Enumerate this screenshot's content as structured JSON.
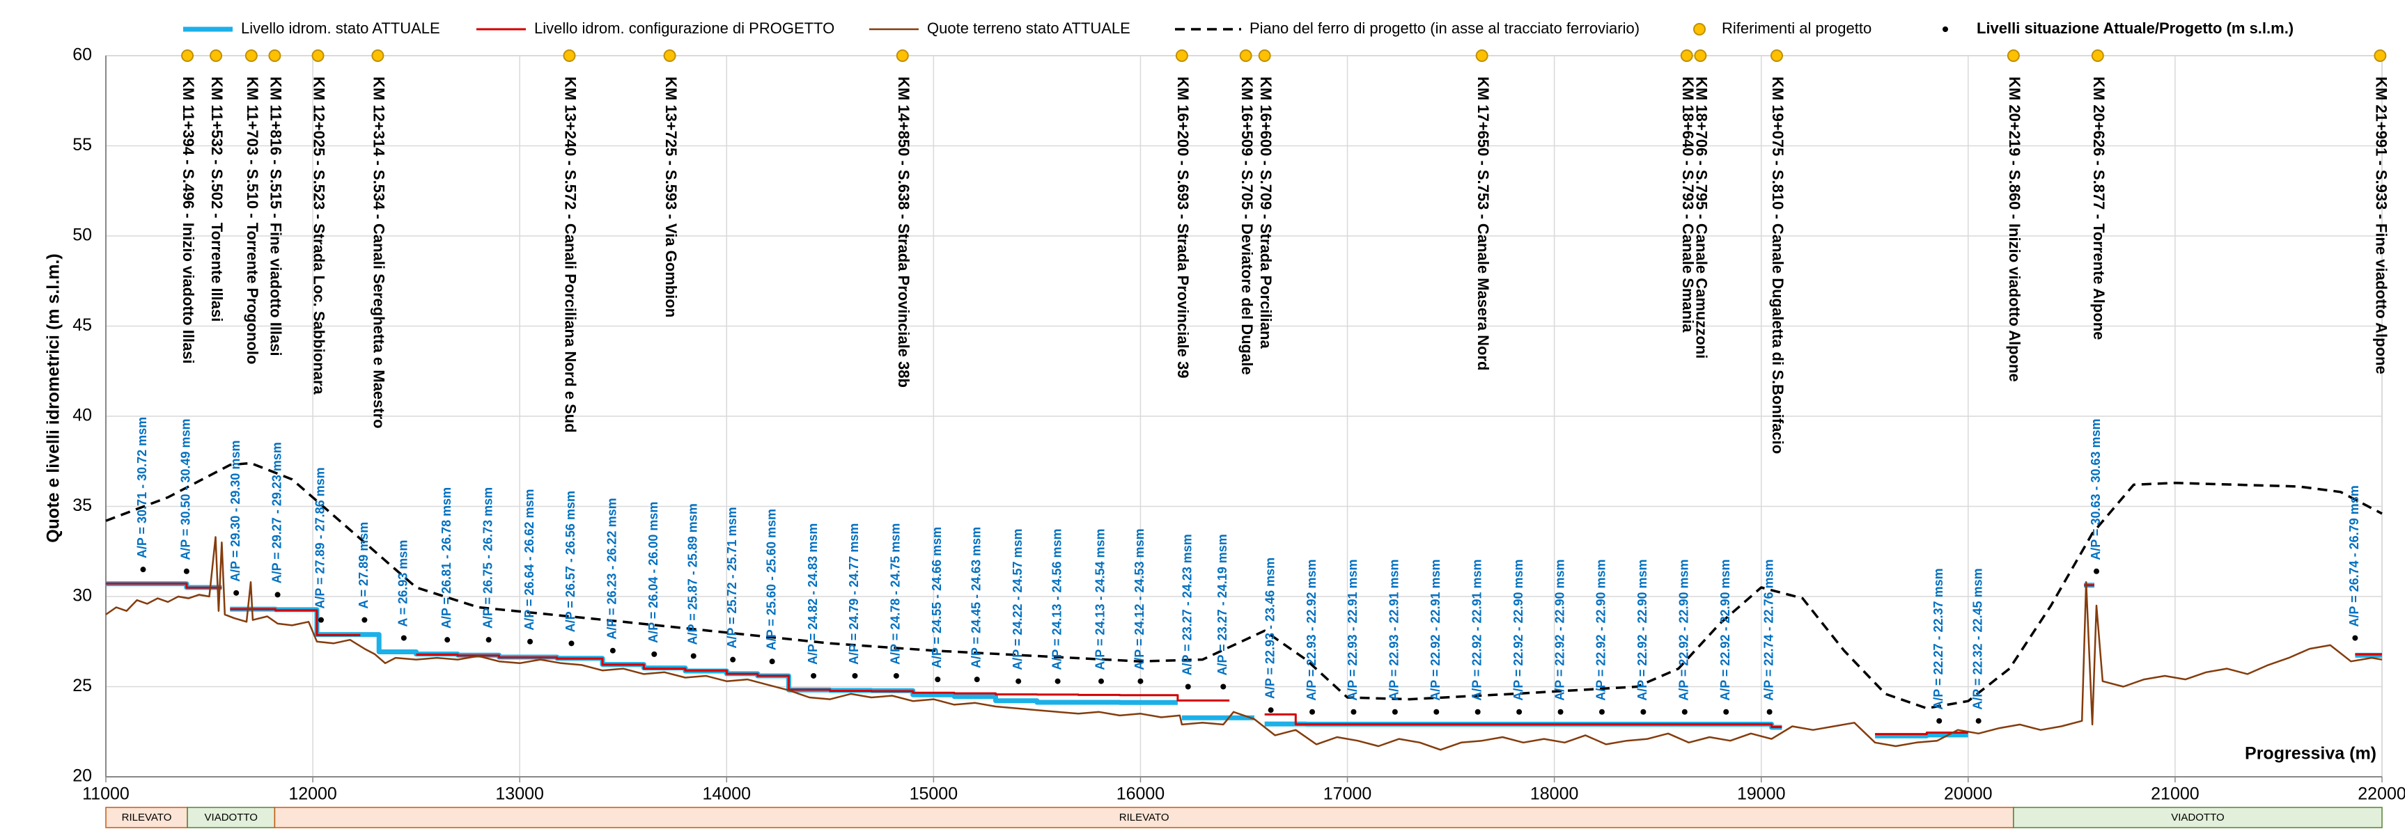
{
  "chart_data": {
    "type": "line",
    "y_label": "Quote e livelli idrometrici (m s.l.m.)",
    "x_label": "Progressiva (m)",
    "xlim": [
      11000,
      22000
    ],
    "xticks": [
      11000,
      12000,
      13000,
      14000,
      15000,
      16000,
      17000,
      18000,
      19000,
      20000,
      21000,
      22000
    ],
    "ylim": [
      20,
      60
    ],
    "yticks": [
      20,
      25,
      30,
      35,
      40,
      45,
      50,
      55,
      60
    ],
    "grid": true,
    "legend": "top",
    "series": [
      {
        "name": "Livello idrom. stato ATTUALE",
        "color": "#1cb0e8",
        "style": "solid",
        "width": 7,
        "x": [
          11000,
          11390,
          11390,
          11560,
          null,
          11600,
          11820,
          11820,
          12020,
          12020,
          12320,
          12320,
          12500,
          12500,
          12700,
          12700,
          12900,
          12900,
          13180,
          13180,
          13400,
          13400,
          13600,
          13600,
          13800,
          13800,
          14000,
          14000,
          14150,
          14150,
          14300,
          14300,
          14500,
          14500,
          14700,
          14700,
          14900,
          14900,
          15100,
          15100,
          15300,
          15300,
          15500,
          15500,
          15900,
          15900,
          16180,
          null,
          16200,
          16550,
          null,
          16600,
          16800,
          16800,
          19050,
          19050,
          19100,
          null,
          19550,
          19800,
          19800,
          20000,
          null,
          20560,
          20610,
          null,
          21870,
          22000
        ],
        "values": [
          30.71,
          30.71,
          30.5,
          30.5,
          null,
          29.3,
          29.3,
          29.27,
          29.27,
          27.89,
          27.89,
          26.93,
          26.93,
          26.81,
          26.81,
          26.75,
          26.75,
          26.64,
          26.64,
          26.57,
          26.57,
          26.23,
          26.23,
          26.04,
          26.04,
          25.87,
          25.87,
          25.72,
          25.72,
          25.6,
          25.6,
          24.82,
          24.82,
          24.79,
          24.79,
          24.78,
          24.78,
          24.55,
          24.55,
          24.45,
          24.45,
          24.22,
          24.22,
          24.13,
          24.13,
          24.12,
          24.12,
          null,
          23.27,
          23.27,
          null,
          22.93,
          22.93,
          22.92,
          22.92,
          22.74,
          22.74,
          null,
          22.27,
          22.27,
          22.32,
          22.32,
          null,
          30.63,
          30.63,
          null,
          26.74,
          26.74
        ]
      },
      {
        "name": "Livello idrom. configurazione di PROGETTO",
        "color": "#d40000",
        "style": "solid",
        "width": 3,
        "x": [
          11000,
          11390,
          11390,
          11560,
          null,
          11600,
          11820,
          11820,
          12020,
          12020,
          12230,
          null,
          12500,
          12700,
          12700,
          12900,
          12900,
          13180,
          13180,
          13400,
          13400,
          13600,
          13600,
          13800,
          13800,
          14000,
          14000,
          14150,
          14150,
          14300,
          14300,
          14500,
          14500,
          14700,
          14700,
          14900,
          14900,
          15100,
          15100,
          15300,
          15300,
          15500,
          15500,
          15700,
          15700,
          15900,
          15900,
          16180,
          16180,
          16430,
          null,
          16600,
          16750,
          16750,
          19050,
          19050,
          19100,
          null,
          19550,
          19800,
          19800,
          20000,
          null,
          20560,
          20610,
          null,
          21870,
          22000
        ],
        "values": [
          30.72,
          30.72,
          30.49,
          30.49,
          null,
          29.3,
          29.3,
          29.23,
          29.23,
          27.86,
          27.86,
          null,
          26.78,
          26.78,
          26.73,
          26.73,
          26.62,
          26.62,
          26.56,
          26.56,
          26.22,
          26.22,
          26.0,
          26.0,
          25.89,
          25.89,
          25.71,
          25.71,
          25.6,
          25.6,
          24.83,
          24.83,
          24.77,
          24.77,
          24.75,
          24.75,
          24.66,
          24.66,
          24.63,
          24.63,
          24.57,
          24.57,
          24.56,
          24.56,
          24.54,
          24.54,
          24.53,
          24.53,
          24.23,
          24.23,
          null,
          23.46,
          23.46,
          22.91,
          22.91,
          22.76,
          22.76,
          null,
          22.37,
          22.37,
          22.45,
          22.45,
          null,
          30.63,
          30.63,
          null,
          26.79,
          26.79
        ]
      },
      {
        "name": "Quote terreno stato ATTUALE",
        "color": "#843c0c",
        "style": "solid",
        "width": 2.5,
        "x": [
          11000,
          11050,
          11100,
          11150,
          11200,
          11250,
          11300,
          11350,
          11400,
          11450,
          11500,
          11530,
          11545,
          11560,
          11575,
          11620,
          11680,
          11700,
          11710,
          11780,
          11830,
          11900,
          11980,
          12020,
          12100,
          12180,
          12250,
          12300,
          12350,
          12400,
          12500,
          12600,
          12700,
          12800,
          12900,
          13000,
          13100,
          13200,
          13300,
          13400,
          13500,
          13600,
          13700,
          13800,
          13900,
          14000,
          14100,
          14200,
          14300,
          14400,
          14500,
          14600,
          14700,
          14800,
          14900,
          15000,
          15100,
          15200,
          15300,
          15400,
          15500,
          15600,
          15700,
          15800,
          15900,
          16000,
          16100,
          16190,
          16200,
          16300,
          16400,
          16450,
          16550,
          16650,
          16750,
          16850,
          16950,
          17050,
          17150,
          17250,
          17350,
          17450,
          17550,
          17650,
          17750,
          17850,
          17950,
          18050,
          18150,
          18250,
          18350,
          18450,
          18550,
          18650,
          18750,
          18850,
          18950,
          19050,
          19150,
          19250,
          19350,
          19450,
          19550,
          19650,
          19750,
          19850,
          19950,
          20050,
          20150,
          20250,
          20350,
          20450,
          20550,
          20570,
          20600,
          20620,
          20650,
          20750,
          20850,
          20950,
          21050,
          21150,
          21250,
          21350,
          21450,
          21550,
          21650,
          21750,
          21850,
          21950,
          22000
        ],
        "values": [
          29.0,
          29.4,
          29.2,
          29.8,
          29.6,
          29.9,
          29.7,
          30.0,
          29.9,
          30.1,
          30.0,
          33.3,
          29.2,
          33.0,
          29.0,
          28.8,
          28.6,
          30.8,
          28.7,
          28.9,
          28.5,
          28.4,
          28.6,
          27.5,
          27.4,
          27.6,
          27.1,
          26.8,
          26.3,
          26.6,
          26.5,
          26.6,
          26.5,
          26.7,
          26.4,
          26.3,
          26.5,
          26.3,
          26.2,
          25.9,
          26.0,
          25.7,
          25.8,
          25.5,
          25.6,
          25.3,
          25.4,
          25.1,
          24.8,
          24.4,
          24.3,
          24.6,
          24.4,
          24.5,
          24.2,
          24.3,
          24.0,
          24.1,
          23.9,
          23.8,
          23.7,
          23.6,
          23.5,
          23.6,
          23.4,
          23.5,
          23.3,
          23.4,
          22.9,
          23.0,
          22.9,
          23.6,
          23.2,
          22.3,
          22.6,
          21.8,
          22.2,
          22.0,
          21.7,
          22.1,
          21.9,
          21.5,
          21.9,
          22.0,
          22.2,
          21.9,
          22.1,
          21.9,
          22.3,
          21.8,
          22.0,
          22.1,
          22.4,
          21.9,
          22.2,
          22.0,
          22.4,
          22.1,
          22.8,
          22.6,
          22.8,
          23.0,
          21.9,
          21.7,
          21.9,
          22.0,
          22.6,
          22.4,
          22.7,
          22.9,
          22.6,
          22.8,
          23.1,
          30.8,
          22.9,
          29.5,
          25.3,
          25.0,
          25.4,
          25.6,
          25.4,
          25.8,
          26.0,
          25.7,
          26.2,
          26.6,
          27.1,
          27.3,
          26.4,
          26.6,
          26.5
        ]
      },
      {
        "name": "Piano del ferro di progetto (in asse al tracciato ferroviario)",
        "color": "#000000",
        "style": "dashed",
        "width": 3.5,
        "x": [
          11000,
          11300,
          11600,
          11700,
          11900,
          12100,
          12300,
          12500,
          12800,
          13500,
          14000,
          14500,
          15000,
          15500,
          16000,
          16300,
          16600,
          16800,
          17000,
          17300,
          17800,
          18400,
          18600,
          18800,
          19000,
          19200,
          19400,
          19600,
          19800,
          20000,
          20200,
          20400,
          20600,
          20800,
          21000,
          21600,
          21800,
          22000
        ],
        "values": [
          34.2,
          35.5,
          37.3,
          37.4,
          36.5,
          34.5,
          32.5,
          30.5,
          29.4,
          28.6,
          28.0,
          27.4,
          27.0,
          26.7,
          26.4,
          26.5,
          28.1,
          26.5,
          24.4,
          24.3,
          24.6,
          25.0,
          26.0,
          28.5,
          30.5,
          29.9,
          27.0,
          24.6,
          23.8,
          24.2,
          26.0,
          29.5,
          33.5,
          36.2,
          36.3,
          36.1,
          35.8,
          34.6
        ]
      }
    ],
    "references": {
      "name": "Riferimenti al progetto",
      "color": "#ffc000",
      "y": 60,
      "points": [
        {
          "x": 11394,
          "label": "KM 11+394 - S.496 - Inizio viadotto Illasi"
        },
        {
          "x": 11532,
          "label": "KM 11+532 - S.502 - Torrente Illasi"
        },
        {
          "x": 11703,
          "label": "KM 11+703 - S.510 - Torrente Progonolo"
        },
        {
          "x": 11816,
          "label": "KM 11+816 - S.515 - Fine viadotto Illasi"
        },
        {
          "x": 12025,
          "label": "KM 12+025 - S.523 - Strada Loc. Sabbionara"
        },
        {
          "x": 12314,
          "label": "KM 12+314 - S.534 - Canali Sereghetta e Maestro"
        },
        {
          "x": 13240,
          "label": "KM 13+240 - S.572 - Canali Porciliana Nord e Sud"
        },
        {
          "x": 13725,
          "label": "KM 13+725 - S.593 - Via Gombion"
        },
        {
          "x": 14850,
          "label": "KM 14+850 - S.638 - Strada Provinciale 38b"
        },
        {
          "x": 16200,
          "label": "KM 16+200 - S.693 - Strada Provinciale 39"
        },
        {
          "x": 16509,
          "label": "KM 16+509 - S.705 - Deviatore del Dugale"
        },
        {
          "x": 16600,
          "label": "KM 16+600 - S.709 - Strada Porciliana"
        },
        {
          "x": 17650,
          "label": "KM 17+650 - S.753 - Canale Masera Nord"
        },
        {
          "x": 18640,
          "label": "KM 18+640 - S.793 - Canale Smania"
        },
        {
          "x": 18706,
          "label": "KM 18+706 - S.795 - Canale Camuzzoni"
        },
        {
          "x": 19075,
          "label": "KM 19+075 - S.810 - Canale Dugaletta di S.Bonifacio"
        },
        {
          "x": 20219,
          "label": "KM 20+219 - S.860 - Inizio viadotto Alpone"
        },
        {
          "x": 20626,
          "label": "KM 20+626 - S.877 - Torrente Alpone"
        },
        {
          "x": 21991,
          "label": "KM 21+991 - S.933 - Fine viadotto Alpone"
        }
      ]
    },
    "levels": {
      "name": "Livelli situazione Attuale/Progetto (m s.l.m.)",
      "color": "#000000",
      "label_color": "#0070c0",
      "points": [
        {
          "x": 11180,
          "y": 31.5,
          "label": "A/P = 30.71 - 30.72 msm"
        },
        {
          "x": 11390,
          "y": 31.4,
          "label": "A/P = 30.50 - 30.49 msm"
        },
        {
          "x": 11630,
          "y": 30.2,
          "label": "A/P = 29.30 - 29.30 msm"
        },
        {
          "x": 11830,
          "y": 30.1,
          "label": "A/P = 29.27 - 29.23 msm"
        },
        {
          "x": 12040,
          "y": 28.7,
          "label": "A/P = 27.89 - 27.86 msm"
        },
        {
          "x": 12250,
          "y": 28.7,
          "label": "A = 27.89 msm"
        },
        {
          "x": 12440,
          "y": 27.7,
          "label": "A = 26.93 msm"
        },
        {
          "x": 12650,
          "y": 27.6,
          "label": "A/P = 26.81 - 26.78 msm"
        },
        {
          "x": 12850,
          "y": 27.6,
          "label": "A/P = 26.75 - 26.73 msm"
        },
        {
          "x": 13050,
          "y": 27.5,
          "label": "A/P = 26.64 - 26.62 msm"
        },
        {
          "x": 13250,
          "y": 27.4,
          "label": "A/P = 26.57 - 26.56 msm"
        },
        {
          "x": 13450,
          "y": 27.0,
          "label": "A/P = 26.23 - 26.22 msm"
        },
        {
          "x": 13650,
          "y": 26.8,
          "label": "A/P = 26.04 - 26.00 msm"
        },
        {
          "x": 13840,
          "y": 26.7,
          "label": "A/P = 25.87 - 25.89 msm"
        },
        {
          "x": 14030,
          "y": 26.5,
          "label": "A/P = 25.72 - 25.71 msm"
        },
        {
          "x": 14220,
          "y": 26.4,
          "label": "A/P = 25.60 - 25.60 msm"
        },
        {
          "x": 14420,
          "y": 25.6,
          "label": "A/P = 24.82 - 24.83 msm"
        },
        {
          "x": 14620,
          "y": 25.6,
          "label": "A/P = 24.79 - 24.77 msm"
        },
        {
          "x": 14820,
          "y": 25.6,
          "label": "A/P = 24.78 - 24.75 msm"
        },
        {
          "x": 15020,
          "y": 25.4,
          "label": "A/P = 24.55 - 24.66 msm"
        },
        {
          "x": 15210,
          "y": 25.4,
          "label": "A/P = 24.45 - 24.63 msm"
        },
        {
          "x": 15410,
          "y": 25.3,
          "label": "A/P = 24.22 - 24.57 msm"
        },
        {
          "x": 15600,
          "y": 25.3,
          "label": "A/P = 24.13 - 24.56 msm"
        },
        {
          "x": 15810,
          "y": 25.3,
          "label": "A/P = 24.13 - 24.54 msm"
        },
        {
          "x": 16000,
          "y": 25.3,
          "label": "A/P = 24.12 - 24.53 msm"
        },
        {
          "x": 16230,
          "y": 25.0,
          "label": "A/P = 23.27 - 24.23 msm"
        },
        {
          "x": 16400,
          "y": 25.0,
          "label": "A/P = 23.27 - 24.19 msm"
        },
        {
          "x": 16630,
          "y": 23.7,
          "label": "A/P = 22.93 - 23.46 msm"
        },
        {
          "x": 16830,
          "y": 23.6,
          "label": "A/P = 22.93 - 22.92 msm"
        },
        {
          "x": 17030,
          "y": 23.6,
          "label": "A/P = 22.93 - 22.91 msm"
        },
        {
          "x": 17230,
          "y": 23.6,
          "label": "A/P = 22.93 - 22.91 msm"
        },
        {
          "x": 17430,
          "y": 23.6,
          "label": "A/P = 22.92 - 22.91 msm"
        },
        {
          "x": 17630,
          "y": 23.6,
          "label": "A/P = 22.92 - 22.91 msm"
        },
        {
          "x": 17830,
          "y": 23.6,
          "label": "A/P = 22.92 - 22.90 msm"
        },
        {
          "x": 18030,
          "y": 23.6,
          "label": "A/P = 22.92 - 22.90 msm"
        },
        {
          "x": 18230,
          "y": 23.6,
          "label": "A/P = 22.92 - 22.90 msm"
        },
        {
          "x": 18430,
          "y": 23.6,
          "label": "A/P = 22.92 - 22.90 msm"
        },
        {
          "x": 18630,
          "y": 23.6,
          "label": "A/P = 22.92 - 22.90 msm"
        },
        {
          "x": 18830,
          "y": 23.6,
          "label": "A/P = 22.92 - 22.90 msm"
        },
        {
          "x": 19040,
          "y": 23.6,
          "label": "A/P = 22.74 - 22.76 msm"
        },
        {
          "x": 19860,
          "y": 23.1,
          "label": "A/P = 22.27 - 22.37 msm"
        },
        {
          "x": 20050,
          "y": 23.1,
          "label": "A/P = 22.32 - 22.45 msm"
        },
        {
          "x": 20620,
          "y": 31.4,
          "label": "A/P = 30.63 - 30.63 msm"
        },
        {
          "x": 21870,
          "y": 27.7,
          "label": "A/P = 26.74 - 26.79 msm"
        }
      ]
    },
    "bands": [
      {
        "label": "RILEVATO",
        "start": 11000,
        "end": 11394,
        "color": "#fce4d6",
        "border": "#c55a11"
      },
      {
        "label": "VIADOTTO",
        "start": 11394,
        "end": 11816,
        "color": "#e2efda",
        "border": "#548235"
      },
      {
        "label": "RILEVATO",
        "start": 11816,
        "end": 20219,
        "color": "#fce4d6",
        "border": "#c55a11"
      },
      {
        "label": "VIADOTTO",
        "start": 20219,
        "end": 22000,
        "color": "#e2efda",
        "border": "#548235"
      }
    ]
  }
}
